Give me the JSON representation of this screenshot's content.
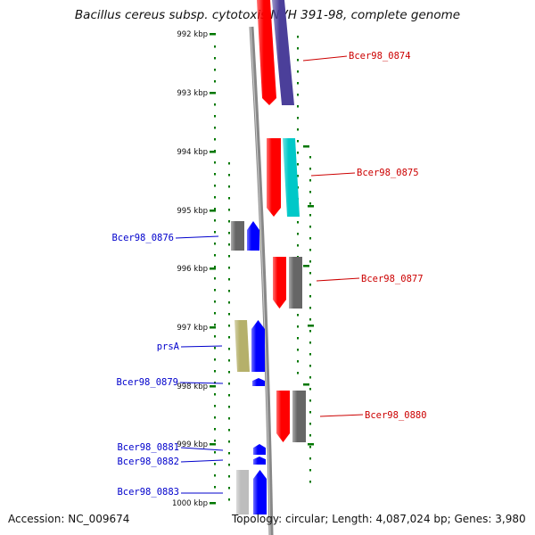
{
  "title": "Bacillus cereus subsp. cytotoxis NVH 391-98, complete genome",
  "accession": "Accession: NC_009674",
  "summary": "Topology: circular; Length: 4,087,024 bp; Genes: 3,980",
  "scale": {
    "unit": "kbp",
    "ticks": [
      "992 kbp",
      "993 kbp",
      "994 kbp",
      "995 kbp",
      "996 kbp",
      "997 kbp",
      "998 kbp",
      "999 kbp",
      "1000 kbp"
    ]
  },
  "colors": {
    "forward_label": "#0000cc",
    "reverse_label": "#cc0000",
    "red_gene": "#ff0000",
    "blue_gene": "#0000ff",
    "navy_gene": "#4b3f9a",
    "cyan_gene": "#00c8c8",
    "gray_gene": "#666666",
    "olive_gene": "#b5b06a",
    "lightgray_gene": "#bdbdbd",
    "tick_color": "#007700",
    "backbone": "#888888"
  },
  "genes": [
    {
      "label": "Bcer98_0874",
      "strand": "reverse"
    },
    {
      "label": "Bcer98_0875",
      "strand": "reverse"
    },
    {
      "label": "Bcer98_0876",
      "strand": "forward"
    },
    {
      "label": "Bcer98_0877",
      "strand": "reverse"
    },
    {
      "label": "prsA",
      "strand": "forward"
    },
    {
      "label": "Bcer98_0879",
      "strand": "forward"
    },
    {
      "label": "Bcer98_0880",
      "strand": "reverse"
    },
    {
      "label": "Bcer98_0881",
      "strand": "forward"
    },
    {
      "label": "Bcer98_0882",
      "strand": "forward"
    },
    {
      "label": "Bcer98_0883",
      "strand": "forward"
    }
  ]
}
